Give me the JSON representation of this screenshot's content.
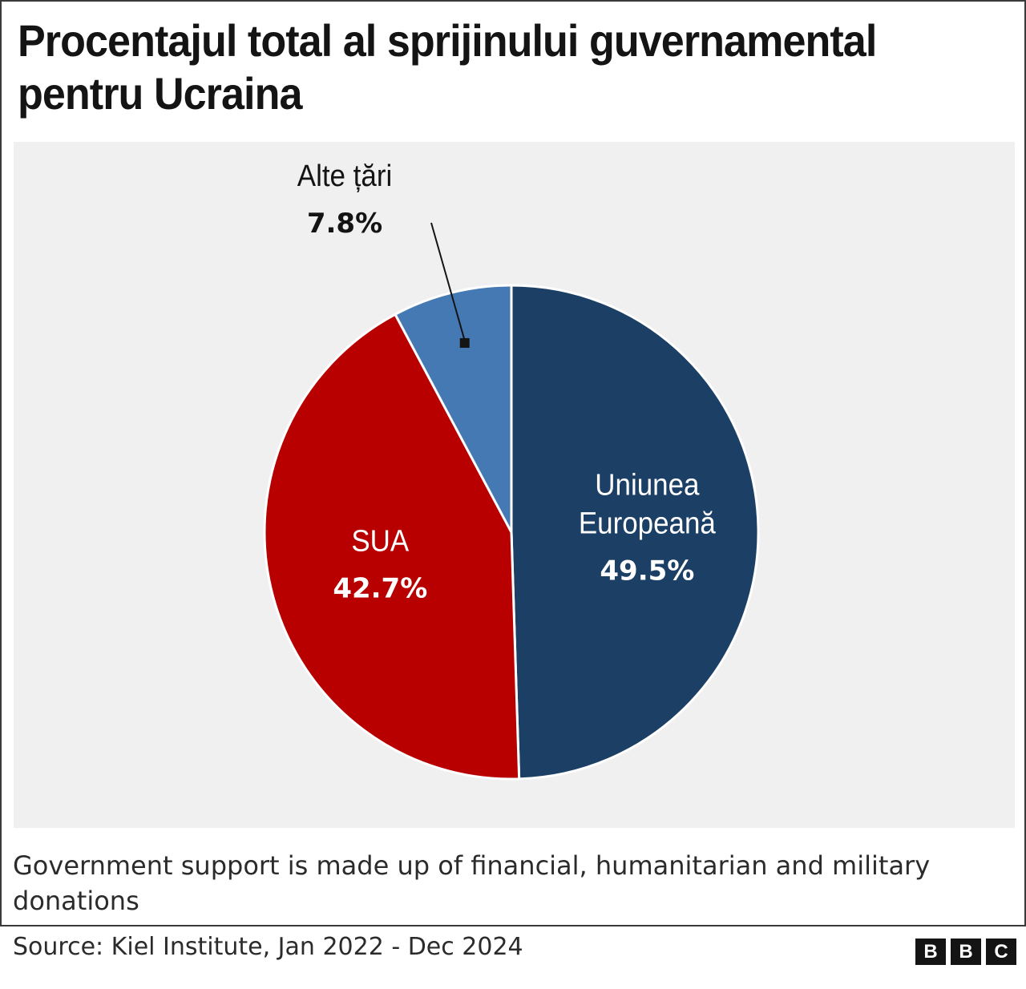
{
  "title": "Procentajul total al sprijinului guvernamental pentru Ucraina",
  "note": "Government support is made up of financial, humanitarian and military donations",
  "source": "Source: Kiel Institute, Jan 2022 - Dec 2024",
  "logo": [
    "B",
    "B",
    "C"
  ],
  "chart_data": {
    "type": "pie",
    "title": "Procentajul total al sprijinului guvernamental pentru Ucraina",
    "unit": "%",
    "slices": [
      {
        "label_lines": [
          "Uniunea",
          "Europeană"
        ],
        "value": 49.5,
        "value_label": "49.5%",
        "color": "#1c3f66"
      },
      {
        "label_lines": [
          "SUA"
        ],
        "value": 42.7,
        "value_label": "42.7%",
        "color": "#b80000"
      },
      {
        "label_lines": [
          "Alte țări"
        ],
        "value": 7.8,
        "value_label": "7.8%",
        "color": "#4579b4"
      }
    ],
    "start_angle": "12 o'clock",
    "direction": "clockwise",
    "small_slice_callout": "Alte țări"
  }
}
